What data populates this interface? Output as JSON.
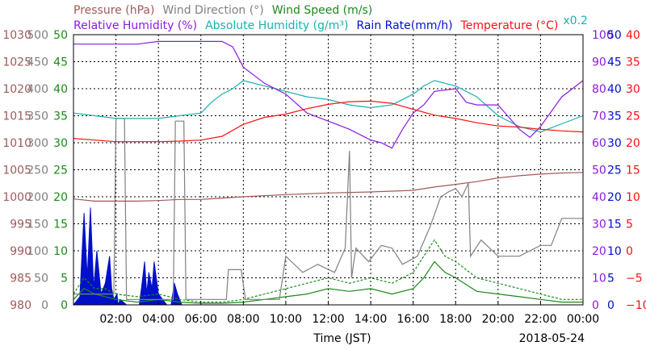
{
  "chart_data": {
    "type": "line",
    "legend": {
      "row1": [
        {
          "text": "Pressure (hPa)",
          "color": "#a05a5a"
        },
        {
          "text": "Wind Direction (°)",
          "color": "#808080"
        },
        {
          "text": "Wind Speed (m/s)",
          "color": "#1a8a1a"
        }
      ],
      "row2": [
        {
          "text": "Relative Humidity (%)",
          "color": "#8c1ae0"
        },
        {
          "text": "Absolute Humidity (g/m³)",
          "color": "#1ab0b0"
        },
        {
          "text": "Rain Rate(mm/h)",
          "color": "#0010c8"
        },
        {
          "text": "Temperature (°C)",
          "color": "#ff1010"
        }
      ],
      "factor": {
        "text": "x0.2",
        "color": "#1ab0b0"
      }
    },
    "xlabel": "Time (JST)",
    "date": "2018-05-24",
    "xlim": [
      0,
      24
    ],
    "x_tick_labels": [
      "02:00",
      "04:00",
      "06:00",
      "08:00",
      "10:00",
      "12:00",
      "14:00",
      "16:00",
      "18:00",
      "20:00",
      "22:00",
      "00:00"
    ],
    "axes": {
      "pressure": {
        "color": "#a05a5a",
        "ticks": [
          "1030",
          "1025",
          "1020",
          "1015",
          "1010",
          "1005",
          "1000",
          "995",
          "990",
          "985",
          "980"
        ],
        "ylim": [
          980,
          1030
        ]
      },
      "wind_direction": {
        "color": "#808080",
        "ticks": [
          "500",
          "450",
          "400",
          "350",
          "300",
          "250",
          "200",
          "150",
          "100",
          "50",
          "0"
        ],
        "ylim": [
          0,
          500
        ]
      },
      "wind_speed": {
        "color": "#1a8a1a",
        "ticks": [
          "50",
          "45",
          "40",
          "35",
          "30",
          "25",
          "20",
          "15",
          "10",
          "5",
          "0"
        ],
        "ylim": [
          0,
          50
        ]
      },
      "humidity": {
        "color": "#8c1ae0",
        "ticks": [
          "100",
          "90",
          "80",
          "70",
          "60",
          "50",
          "40",
          "30",
          "20",
          "10",
          "0"
        ],
        "ylim": [
          0,
          100
        ]
      },
      "rain_rate": {
        "color": "#0010c8",
        "ticks": [
          "50",
          "45",
          "40",
          "35",
          "30",
          "25",
          "20",
          "15",
          "10",
          "5",
          "0"
        ],
        "ylim": [
          0,
          50
        ]
      },
      "temperature": {
        "color": "#ff1010",
        "ticks": [
          "40",
          "35",
          "30",
          "25",
          "20",
          "15",
          "10",
          "5",
          "0",
          "−5",
          "−10"
        ],
        "ylim": [
          -10,
          40
        ]
      }
    },
    "series": [
      {
        "name": "Pressure",
        "color": "#a05a5a",
        "axis": "pressure",
        "x": [
          0,
          1,
          2,
          3,
          4,
          5,
          6,
          8,
          10,
          12,
          14,
          16,
          17,
          18,
          19,
          20,
          21,
          22,
          23,
          24
        ],
        "y": [
          999.6,
          999.2,
          999.2,
          999.2,
          999.3,
          999.5,
          999.5,
          1000.0,
          1000.4,
          1000.7,
          1000.9,
          1001.2,
          1001.8,
          1002.3,
          1002.8,
          1003.5,
          1003.9,
          1004.2,
          1004.4,
          1004.5
        ]
      },
      {
        "name": "Temperature",
        "color": "#ff1010",
        "axis": "temperature",
        "x": [
          0,
          1,
          2,
          4,
          5,
          6,
          7,
          8,
          9,
          10,
          11,
          12,
          13,
          14,
          15,
          16,
          17,
          18,
          19,
          20,
          21,
          22,
          23,
          24
        ],
        "y": [
          20.8,
          20.5,
          20.2,
          20.2,
          20.3,
          20.5,
          21.2,
          23.4,
          24.7,
          25.3,
          26.3,
          27.1,
          27.6,
          27.7,
          27.3,
          26.2,
          25.1,
          24.5,
          23.7,
          23.1,
          22.9,
          22.5,
          22.2,
          22.0
        ]
      },
      {
        "name": "Relative Humidity",
        "color": "#8c1ae0",
        "axis": "humidity",
        "x": [
          0,
          2,
          3,
          4,
          6,
          7,
          7.5,
          8,
          9,
          10,
          11,
          12,
          13,
          14,
          14.5,
          15,
          15.5,
          16,
          16.5,
          17,
          18,
          18.5,
          19,
          20,
          21,
          21.5,
          22,
          23,
          24
        ],
        "y": [
          96.5,
          96.5,
          96.5,
          97.5,
          97.5,
          97.5,
          95.5,
          88,
          82,
          78,
          71,
          68,
          65,
          61,
          60,
          58,
          65,
          71,
          74,
          79,
          80,
          75,
          74,
          74,
          65,
          62,
          66,
          77,
          83
        ]
      },
      {
        "name": "Absolute Humidity",
        "color": "#1ab0b0",
        "axis": "humidity",
        "x": [
          0,
          1,
          2,
          3,
          4,
          5,
          6,
          6.5,
          7,
          7.5,
          8,
          9,
          10,
          11,
          12,
          13,
          14,
          15,
          16,
          16.5,
          17,
          17.5,
          18,
          19,
          20,
          21,
          22,
          23,
          24
        ],
        "y": [
          71,
          70,
          69,
          69,
          69,
          70,
          71,
          75,
          78,
          80,
          83,
          81,
          79,
          77,
          76,
          74,
          73,
          74,
          78,
          81,
          83,
          82,
          81,
          77,
          70,
          66,
          64,
          67,
          70
        ]
      },
      {
        "name": "Wind Direction",
        "color": "#808080",
        "axis": "wind_direction",
        "x": [
          0,
          1.9,
          2.0,
          2.4,
          2.5,
          3.5,
          3.6,
          4.7,
          4.8,
          5.2,
          5.3,
          7.2,
          7.3,
          7.9,
          8.1,
          9.7,
          10.0,
          10.8,
          11.5,
          12.3,
          12.8,
          13.0,
          13.1,
          13.3,
          13.9,
          14.5,
          15.0,
          15.5,
          16.2,
          16.8,
          17.3,
          17.7,
          18.0,
          18.3,
          18.6,
          18.7,
          19.2,
          20.0,
          21.0,
          22.0,
          22.5,
          23.0,
          24.0
        ],
        "y": [
          20,
          20,
          345,
          345,
          10,
          10,
          10,
          10,
          340,
          340,
          10,
          10,
          65,
          65,
          10,
          10,
          90,
          60,
          75,
          60,
          105,
          285,
          50,
          105,
          80,
          110,
          105,
          75,
          90,
          145,
          200,
          210,
          215,
          200,
          225,
          90,
          120,
          90,
          90,
          110,
          110,
          160,
          160
        ]
      },
      {
        "name": "Wind Speed",
        "color": "#1a8a1a",
        "axis": "wind_speed",
        "x": [
          0,
          0.5,
          1,
          1.5,
          2,
          3,
          4,
          5,
          6,
          7,
          8,
          9,
          10,
          11,
          12,
          13,
          14,
          15,
          16,
          16.5,
          17,
          17.5,
          18,
          19,
          20,
          21,
          22,
          23,
          24
        ],
        "y": [
          1,
          3,
          2,
          1.5,
          1,
          0.5,
          1,
          0.5,
          0.3,
          0.3,
          0.5,
          1,
          1.5,
          2,
          3,
          2.5,
          3,
          2,
          3,
          5,
          8,
          6,
          5,
          2.5,
          2,
          1.5,
          1,
          0.5,
          0.5
        ]
      },
      {
        "name": "Wind Speed (dashed)",
        "color": "#1a8a1a",
        "axis": "wind_speed",
        "dashed": true,
        "x": [
          0,
          0.5,
          1,
          1.5,
          2,
          3,
          4,
          5,
          6,
          7,
          8,
          9,
          10,
          11,
          12,
          13,
          14,
          15,
          16,
          16.5,
          17,
          17.5,
          18,
          19,
          20,
          21,
          22,
          23,
          24
        ],
        "y": [
          2,
          5,
          3,
          3,
          2,
          1.5,
          2,
          1,
          0.5,
          0.5,
          1,
          2,
          3,
          4,
          5,
          4,
          5,
          4,
          6,
          9,
          12,
          9,
          8,
          5,
          4,
          3,
          2,
          1,
          1
        ]
      },
      {
        "name": "Rain Rate",
        "color": "#0010c8",
        "axis": "rain_rate",
        "fill": true,
        "x": [
          0,
          0.3,
          0.5,
          0.65,
          0.8,
          0.95,
          1.1,
          1.3,
          1.5,
          1.7,
          1.8,
          1.9,
          2.05,
          2.1,
          2.2,
          2.5,
          2.7,
          2.9,
          3.1,
          3.2,
          3.35,
          3.45,
          3.55,
          3.7,
          3.8,
          4.0,
          4.2,
          4.4,
          4.6,
          4.75,
          4.9,
          5.0,
          5.1,
          5.2,
          5.5
        ],
        "y": [
          0,
          1.5,
          17,
          5,
          18,
          3,
          10,
          2,
          4,
          9,
          3,
          1,
          2,
          0,
          1,
          0,
          0,
          0,
          0,
          3,
          8,
          2,
          6,
          3,
          8,
          2,
          1,
          0,
          0,
          4,
          2,
          1,
          0,
          0,
          0
        ]
      }
    ]
  }
}
